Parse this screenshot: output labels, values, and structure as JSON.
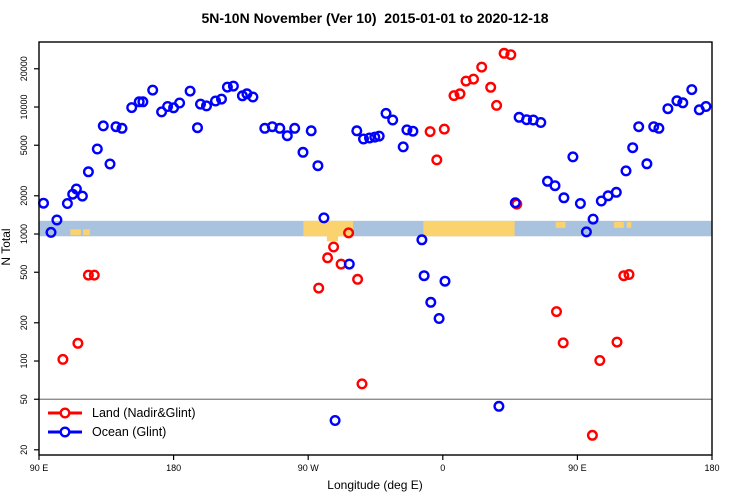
{
  "chart_data": {
    "type": "scatter",
    "title": "5N-10N November (Ver 10)  2015-01-01 to 2020-12-18",
    "xlabel": "Longitude (deg E)",
    "ylabel": "N Total",
    "x_axis": {
      "note": "longitude axis wraps: 90E eastward to 180 (second time)",
      "range_unwrapped_deg": [
        90,
        540
      ],
      "ticks": [
        {
          "t": 90,
          "label": "90 E"
        },
        {
          "t": 180,
          "label": "180"
        },
        {
          "t": 270,
          "label": "90 W"
        },
        {
          "t": 360,
          "label": "0"
        },
        {
          "t": 450,
          "label": "90 E"
        },
        {
          "t": 540,
          "label": "180"
        }
      ]
    },
    "y_axis": {
      "scale": "log",
      "range": [
        18.2,
        32500
      ],
      "ticks": [
        20,
        50,
        100,
        200,
        500,
        1000,
        2000,
        5000,
        10000,
        20000
      ]
    },
    "reference_line": {
      "y": 50,
      "color": "#7f7f7f"
    },
    "band": {
      "n_from": 960,
      "n_to": 1270,
      "color": "#a9c2dd",
      "orange_color": "#fbd36e",
      "orange_segments": [
        {
          "from": 266.8,
          "to": 300,
          "style": "full"
        },
        {
          "from": 347,
          "to": 408,
          "style": "full"
        },
        {
          "from": 282.5,
          "to": 290,
          "style": "below"
        },
        {
          "from": 111,
          "to": 118,
          "style": "speck-bottom"
        },
        {
          "from": 119.5,
          "to": 124,
          "style": "speck-bottom"
        },
        {
          "from": 435.5,
          "to": 442,
          "style": "speck-top"
        },
        {
          "from": 474.5,
          "to": 481,
          "style": "speck-top"
        },
        {
          "from": 483,
          "to": 486,
          "style": "speck-top"
        }
      ]
    },
    "series": [
      {
        "name": "Land (Nadir&Glint)",
        "color": "#ff0000",
        "points": [
          [
            106,
            103
          ],
          [
            116,
            138
          ],
          [
            123,
            475
          ],
          [
            127,
            475
          ],
          [
            277,
            375
          ],
          [
            283,
            650
          ],
          [
            287,
            790
          ],
          [
            292,
            580
          ],
          [
            297,
            1020
          ],
          [
            303,
            440
          ],
          [
            306,
            66
          ],
          [
            351.5,
            6400
          ],
          [
            356,
            3830
          ],
          [
            361,
            6700
          ],
          [
            367.5,
            12300
          ],
          [
            371.5,
            12700
          ],
          [
            375.5,
            16000
          ],
          [
            380.5,
            16600
          ],
          [
            386,
            20600
          ],
          [
            392,
            14300
          ],
          [
            396,
            10300
          ],
          [
            401,
            26500
          ],
          [
            405.5,
            25800
          ],
          [
            409.5,
            1720
          ],
          [
            436,
            245
          ],
          [
            440.5,
            139
          ],
          [
            460,
            26
          ],
          [
            465,
            101
          ],
          [
            476.5,
            141
          ],
          [
            481,
            470
          ],
          [
            484.5,
            480
          ]
        ]
      },
      {
        "name": "Ocean (Glint)",
        "color": "#0000ff",
        "points": [
          [
            93,
            1750
          ],
          [
            98,
            1030
          ],
          [
            102,
            1290
          ],
          [
            109,
            1740
          ],
          [
            112.5,
            2060
          ],
          [
            115,
            2260
          ],
          [
            119,
            1990
          ],
          [
            123,
            3090
          ],
          [
            129,
            4670
          ],
          [
            133,
            7100
          ],
          [
            137.5,
            3560
          ],
          [
            141.5,
            7000
          ],
          [
            145.5,
            6800
          ],
          [
            152,
            9900
          ],
          [
            157,
            11000
          ],
          [
            159.5,
            11000
          ],
          [
            166,
            13600
          ],
          [
            172,
            9150
          ],
          [
            176,
            10100
          ],
          [
            180,
            9850
          ],
          [
            184,
            10750
          ],
          [
            191,
            13350
          ],
          [
            196,
            6870
          ],
          [
            198,
            10550
          ],
          [
            202,
            10200
          ],
          [
            208,
            11150
          ],
          [
            212,
            11550
          ],
          [
            216,
            14350
          ],
          [
            220,
            14600
          ],
          [
            226,
            12250
          ],
          [
            229,
            12700
          ],
          [
            233,
            12000
          ],
          [
            241,
            6800
          ],
          [
            246,
            7000
          ],
          [
            251,
            6800
          ],
          [
            256,
            5950
          ],
          [
            261,
            6800
          ],
          [
            266.5,
            4400
          ],
          [
            272,
            6500
          ],
          [
            276.5,
            3450
          ],
          [
            280.5,
            1340
          ],
          [
            288,
            34
          ],
          [
            297.5,
            580
          ],
          [
            302.5,
            6500
          ],
          [
            307,
            5600
          ],
          [
            311,
            5700
          ],
          [
            314.5,
            5800
          ],
          [
            317.5,
            5900
          ],
          [
            322,
            8900
          ],
          [
            326.5,
            7900
          ],
          [
            333.5,
            4850
          ],
          [
            336,
            6600
          ],
          [
            340,
            6450
          ],
          [
            346,
            900
          ],
          [
            347.5,
            470
          ],
          [
            352,
            290
          ],
          [
            357.5,
            216
          ],
          [
            361.5,
            425
          ],
          [
            397.5,
            44
          ],
          [
            408.5,
            1760
          ],
          [
            411,
            8300
          ],
          [
            416,
            7950
          ],
          [
            420.5,
            7900
          ],
          [
            425.5,
            7550
          ],
          [
            430,
            2600
          ],
          [
            435,
            2400
          ],
          [
            441,
            1930
          ],
          [
            447,
            4050
          ],
          [
            452,
            1740
          ],
          [
            456,
            1040
          ],
          [
            460.5,
            1310
          ],
          [
            466,
            1820
          ],
          [
            470.5,
            2000
          ],
          [
            476,
            2130
          ],
          [
            482.5,
            3140
          ],
          [
            487,
            4780
          ],
          [
            491,
            7000
          ],
          [
            496.5,
            3570
          ],
          [
            501,
            7000
          ],
          [
            504.5,
            6800
          ],
          [
            510.5,
            9700
          ],
          [
            516.5,
            11200
          ],
          [
            520.5,
            10800
          ],
          [
            526.5,
            13700
          ],
          [
            531.5,
            9500
          ],
          [
            536,
            10100
          ]
        ]
      }
    ],
    "legend_position": "bottom-left"
  }
}
